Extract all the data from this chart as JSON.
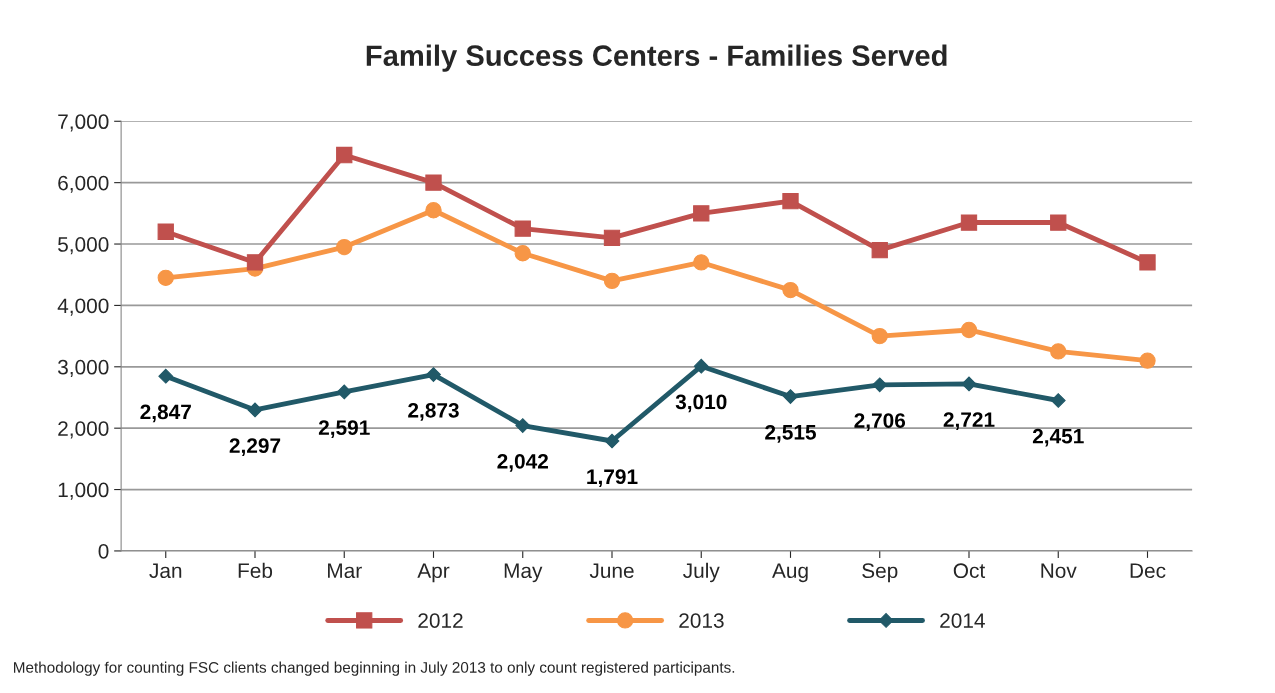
{
  "chart_data": {
    "type": "line",
    "title": "Family Success Centers - Families Served",
    "categories": [
      "Jan",
      "Feb",
      "Mar",
      "Apr",
      "May",
      "June",
      "July",
      "Aug",
      "Sep",
      "Oct",
      "Nov",
      "Dec"
    ],
    "series": [
      {
        "name": "2012",
        "color": "#c0504d",
        "marker": "square",
        "values": [
          5200,
          4700,
          6450,
          6000,
          5250,
          5100,
          5500,
          5700,
          4900,
          5350,
          5350,
          4700
        ]
      },
      {
        "name": "2013",
        "color": "#f79646",
        "marker": "circle",
        "values": [
          4450,
          4600,
          4950,
          5550,
          4850,
          4400,
          4700,
          4250,
          3500,
          3600,
          3250,
          3100
        ]
      },
      {
        "name": "2014",
        "color": "#215968",
        "marker": "diamond",
        "values": [
          2847,
          2297,
          2591,
          2873,
          2042,
          1791,
          3010,
          2515,
          2706,
          2721,
          2451,
          null
        ],
        "value_labels": [
          "2,847",
          "2,297",
          "2,591",
          "2,873",
          "2,042",
          "1,791",
          "3,010",
          "2,515",
          "2,706",
          "2,721",
          "2,451",
          null
        ]
      }
    ],
    "ylim": [
      0,
      7000
    ],
    "yticks": [
      {
        "value": 0,
        "label": "0"
      },
      {
        "value": 1000,
        "label": "1,000"
      },
      {
        "value": 2000,
        "label": "2,000"
      },
      {
        "value": 3000,
        "label": "3,000"
      },
      {
        "value": 4000,
        "label": "4,000"
      },
      {
        "value": 5000,
        "label": "5,000"
      },
      {
        "value": 6000,
        "label": "6,000"
      },
      {
        "value": 7000,
        "label": "7,000"
      }
    ],
    "grid": "y",
    "legend": "bottom",
    "line_style": "solid",
    "annotations": [
      "Methodology for counting FSC clients changed beginning in July 2013 to only count registered participants."
    ]
  }
}
